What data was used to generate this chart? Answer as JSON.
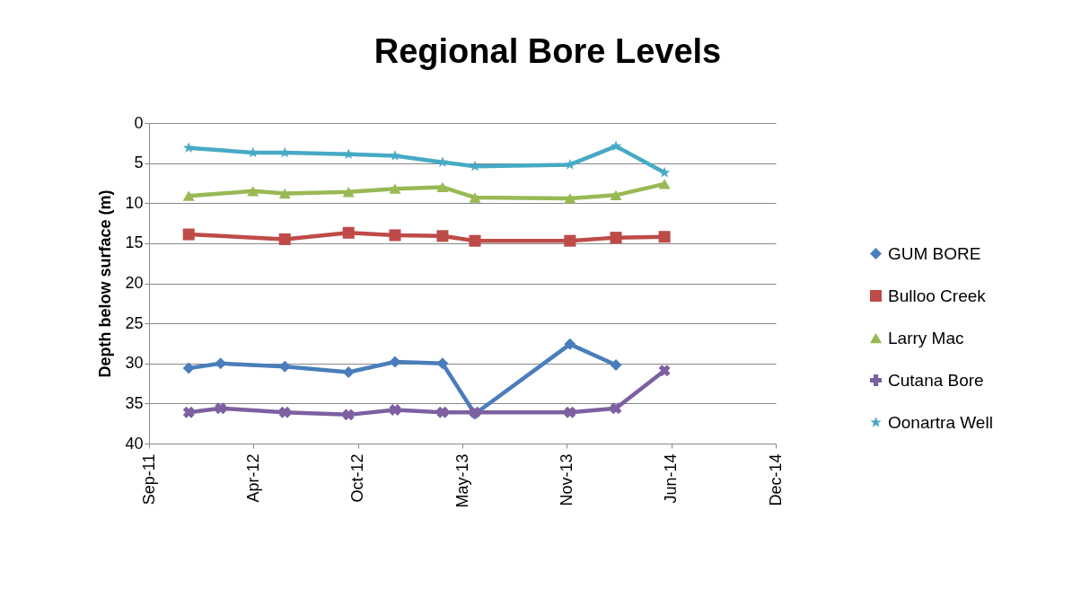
{
  "chart_data": {
    "type": "line",
    "title": "Regional Bore Levels",
    "ylabel": "Depth below surface (m)",
    "x": [
      "2011-11-29",
      "2012-01-29",
      "2012-03-31",
      "2012-05-31",
      "2012-09-30",
      "2012-12-28",
      "2013-03-29",
      "2013-05-30",
      "2013-11-28",
      "2014-02-24",
      "2014-05-28"
    ],
    "series": [
      {
        "name": "GUM BORE",
        "color": "#4a7ebb",
        "marker": "diamond",
        "values": [
          30.6,
          30.0,
          null,
          30.4,
          31.1,
          29.8,
          30.0,
          36.3,
          27.6,
          30.2,
          null
        ]
      },
      {
        "name": "Bulloo Creek",
        "color": "#be4b48",
        "marker": "square",
        "values": [
          13.9,
          null,
          null,
          14.5,
          13.7,
          14.0,
          14.1,
          14.7,
          14.7,
          14.3,
          14.2
        ]
      },
      {
        "name": "Larry Mac",
        "color": "#98b954",
        "marker": "triangle",
        "values": [
          9.1,
          null,
          8.5,
          8.8,
          8.6,
          8.2,
          8.0,
          9.3,
          9.4,
          9.0,
          7.6
        ]
      },
      {
        "name": "Cutana Bore",
        "color": "#7d60a0",
        "marker": "cross",
        "values": [
          36.1,
          35.6,
          null,
          36.1,
          36.4,
          35.8,
          36.1,
          36.1,
          36.1,
          35.6,
          30.9
        ]
      },
      {
        "name": "Oonartra Well",
        "color": "#46aac5",
        "marker": "star",
        "values": [
          3.1,
          null,
          3.7,
          3.7,
          3.9,
          4.1,
          4.9,
          5.4,
          5.2,
          2.9,
          6.2
        ]
      }
    ],
    "xlim": [
      "2011-09-14",
      "2014-12-27"
    ],
    "xticks": [
      {
        "value": "2011-09-14",
        "label": "Sep-11"
      },
      {
        "value": "2012-04-01",
        "label": "Apr-12"
      },
      {
        "value": "2012-10-18",
        "label": "Oct-12"
      },
      {
        "value": "2013-05-06",
        "label": "May-13"
      },
      {
        "value": "2013-11-22",
        "label": "Nov-13"
      },
      {
        "value": "2014-06-10",
        "label": "Jun-14"
      },
      {
        "value": "2014-12-27",
        "label": "Dec-14"
      }
    ],
    "ylim": [
      40,
      0
    ],
    "yticks": [
      0,
      5,
      10,
      15,
      20,
      25,
      30,
      35,
      40
    ],
    "grid": "y",
    "legend": "right",
    "line_style": "solid"
  }
}
